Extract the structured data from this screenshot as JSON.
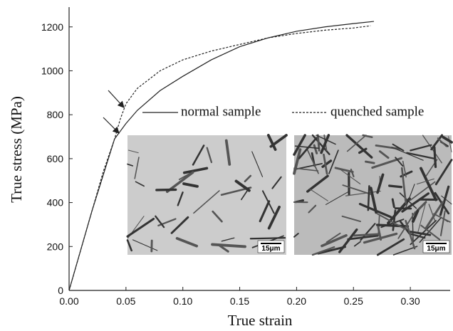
{
  "chart_data": {
    "type": "line",
    "x_label": "True strain",
    "y_label": "True stress (MPa)",
    "xlim": [
      0,
      0.335
    ],
    "ylim": [
      0,
      1290
    ],
    "xticks": [
      {
        "value": 0,
        "label": "0.00"
      },
      {
        "value": 0.05,
        "label": "0.05"
      },
      {
        "value": 0.1,
        "label": "0.10"
      },
      {
        "value": 0.15,
        "label": "0.15"
      },
      {
        "value": 0.2,
        "label": "0.20"
      },
      {
        "value": 0.25,
        "label": "0.25"
      },
      {
        "value": 0.3,
        "label": "0.30"
      }
    ],
    "yticks": [
      0,
      200,
      400,
      600,
      800,
      1000,
      1200
    ],
    "grid": false,
    "series": [
      {
        "name": "normal sample",
        "color": "#222",
        "dash": false,
        "x": [
          0,
          0.02,
          0.04,
          0.05,
          0.06,
          0.08,
          0.1,
          0.125,
          0.15,
          0.175,
          0.2,
          0.225,
          0.25,
          0.268
        ],
        "values": [
          0,
          360,
          690,
          760,
          820,
          910,
          975,
          1050,
          1110,
          1150,
          1180,
          1200,
          1215,
          1225
        ]
      },
      {
        "name": "quenched sample",
        "color": "#222",
        "dash": true,
        "x": [
          0,
          0.02,
          0.03,
          0.04,
          0.045,
          0.05,
          0.06,
          0.08,
          0.1,
          0.125,
          0.15,
          0.175,
          0.2,
          0.225,
          0.25,
          0.265
        ],
        "values": [
          0,
          360,
          540,
          690,
          780,
          850,
          920,
          1000,
          1050,
          1090,
          1120,
          1150,
          1170,
          1185,
          1195,
          1205
        ]
      }
    ],
    "scale_bar_labels": [
      "15μm",
      "15μm"
    ]
  }
}
